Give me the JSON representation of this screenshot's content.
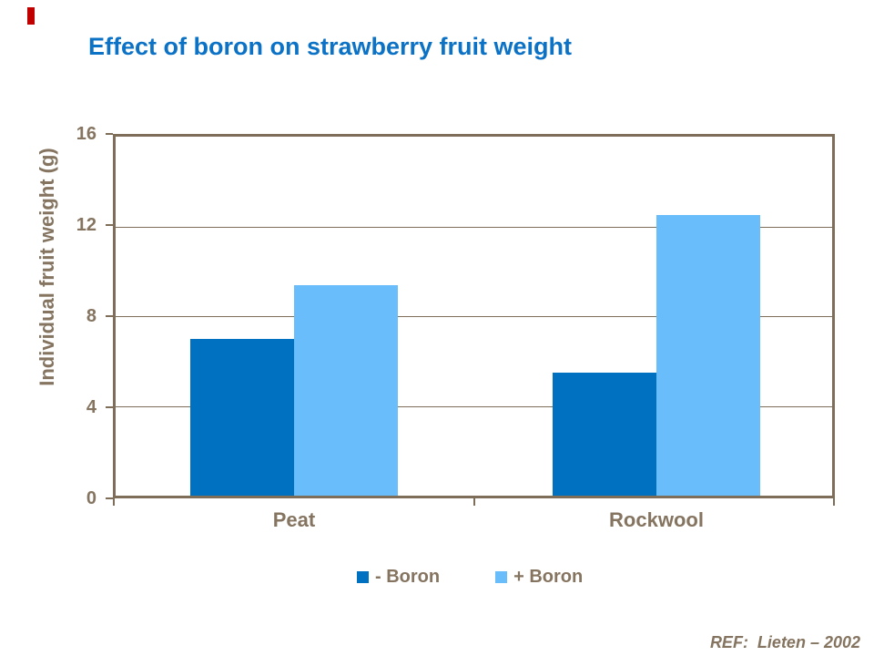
{
  "slide": {
    "title": "Effect of boron on strawberry fruit weight",
    "ref_note": "REF:  Lieten – 2002"
  },
  "chart_data": {
    "type": "bar",
    "title": "Effect of boron on strawberry fruit weight",
    "categories": [
      "Peat",
      "Rockwool"
    ],
    "series": [
      {
        "name": "- Boron",
        "color": "#0070C0",
        "values": [
          7.0,
          5.5
        ]
      },
      {
        "name": "+ Boron",
        "color": "#69BDFB",
        "values": [
          9.4,
          12.5
        ]
      }
    ],
    "xlabel": "",
    "ylabel": "Individual fruit weight (g)",
    "ylim": [
      0,
      16
    ],
    "yticks": [
      0,
      4,
      8,
      12,
      16
    ],
    "grid": true,
    "legend_position": "bottom"
  },
  "colors": {
    "title_blue": "#0C72C6",
    "axis_line": "#7D6D59",
    "axis_text": "#857460",
    "red_marker": "#C00000"
  }
}
